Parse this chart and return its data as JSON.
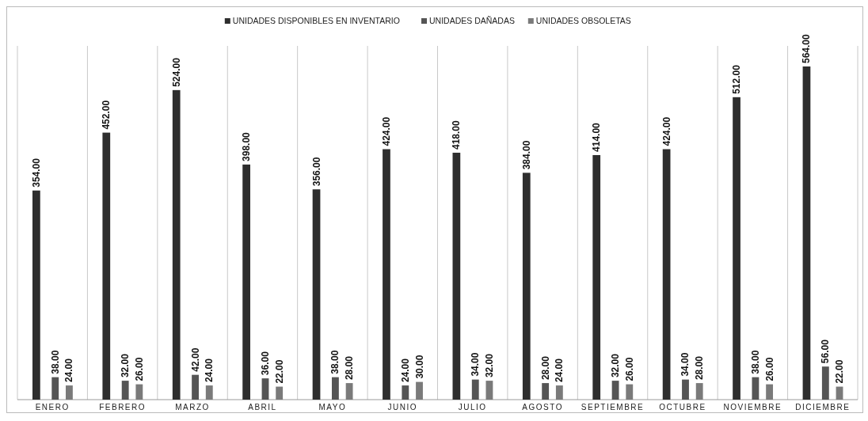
{
  "chart_data": {
    "type": "bar",
    "categories": [
      "ENERO",
      "FEBRERO",
      "MARZO",
      "ABRIL",
      "MAYO",
      "JUNIO",
      "JULIO",
      "AGOSTO",
      "SEPTIEMBRE",
      "OCTUBRE",
      "NOVIEMBRE",
      "DICIEMBRE"
    ],
    "series": [
      {
        "name": "UNIDADES DISPONIBLES EN INVENTARIO",
        "color": "#2e2e2e",
        "values": [
          354,
          452,
          524,
          398,
          356,
          424,
          418,
          384,
          414,
          424,
          512,
          564
        ],
        "value_labels": [
          "354.00",
          "452.00",
          "524.00",
          "398.00",
          "356.00",
          "424.00",
          "418.00",
          "384.00",
          "414.00",
          "424.00",
          "512.00",
          "564.00"
        ]
      },
      {
        "name": "UNIDADES DAÑADAS",
        "color": "#555555",
        "values": [
          38,
          32,
          42,
          36,
          38,
          24,
          34,
          28,
          32,
          34,
          38,
          56
        ],
        "value_labels": [
          "38.00",
          "32.00",
          "42.00",
          "36.00",
          "38.00",
          "24.00",
          "34.00",
          "28.00",
          "32.00",
          "34.00",
          "38.00",
          "56.00"
        ]
      },
      {
        "name": "UNIDADES OBSOLETAS",
        "color": "#7a7a7a",
        "values": [
          24,
          26,
          24,
          22,
          28,
          30,
          32,
          24,
          26,
          28,
          26,
          22
        ],
        "value_labels": [
          "24.00",
          "26.00",
          "24.00",
          "22.00",
          "28.00",
          "30.00",
          "32.00",
          "24.00",
          "26.00",
          "28.00",
          "26.00",
          "22.00"
        ]
      }
    ],
    "grid": "x",
    "legend": "top"
  }
}
